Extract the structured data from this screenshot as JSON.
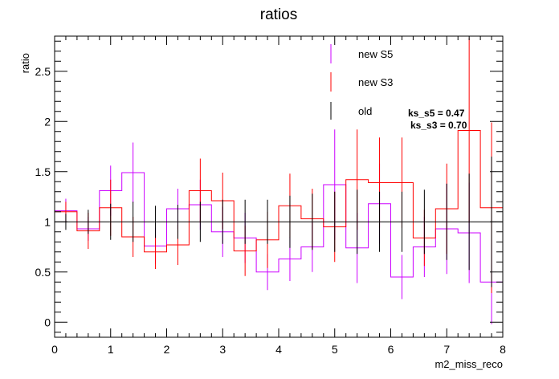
{
  "chart_data": {
    "type": "line",
    "title": "ratios",
    "xlabel": "m2_miss_reco",
    "ylabel": "ratio",
    "xlim": [
      0,
      8
    ],
    "ylim": [
      -0.15,
      2.85
    ],
    "x_ticks": [
      0,
      1,
      2,
      3,
      4,
      5,
      6,
      7,
      8
    ],
    "x_tick_labels": [
      "0",
      "1",
      "2",
      "3",
      "4",
      "5",
      "6",
      "7",
      "8"
    ],
    "y_ticks": [
      0,
      0.5,
      1,
      1.5,
      2,
      2.5
    ],
    "y_tick_labels": [
      "0",
      "0.5",
      "1",
      "1.5",
      "2",
      "2.5"
    ],
    "reference_line": 1,
    "bin_edges": [
      0,
      0.4,
      0.8,
      1.2,
      1.6,
      2.0,
      2.4,
      2.8,
      3.2,
      3.6,
      4.0,
      4.4,
      4.8,
      5.2,
      5.6,
      6.0,
      6.4,
      6.8,
      7.2,
      7.6,
      8.0
    ],
    "series": [
      {
        "name": "new S5",
        "color": "#cc00ff",
        "values": [
          1.11,
          0.93,
          1.31,
          1.49,
          0.76,
          1.13,
          1.17,
          0.9,
          0.84,
          0.5,
          0.63,
          0.75,
          1.37,
          0.74,
          1.18,
          0.45,
          0.75,
          0.93,
          0.89,
          0.4
        ],
        "errors": [
          0.12,
          0.12,
          0.25,
          0.3,
          0.18,
          0.2,
          0.25,
          0.25,
          0.25,
          0.18,
          0.22,
          0.25,
          0.55,
          0.35,
          0.4,
          0.22,
          0.3,
          0.45,
          0.5,
          0.42
        ]
      },
      {
        "name": "new S3",
        "color": "#ff0000",
        "values": [
          1.1,
          0.91,
          1.14,
          0.85,
          0.7,
          0.77,
          1.31,
          1.21,
          0.71,
          0.82,
          1.16,
          1.03,
          0.95,
          1.42,
          1.39,
          1.39,
          0.84,
          1.13,
          1.91,
          1.14
        ],
        "errors": [
          0.1,
          0.18,
          0.28,
          0.2,
          0.17,
          0.2,
          0.32,
          0.28,
          0.25,
          0.28,
          0.32,
          0.3,
          0.35,
          0.5,
          0.45,
          0.45,
          0.28,
          0.45,
          0.92,
          0.85
        ]
      },
      {
        "name": "old",
        "color": "#000000",
        "values": [
          1,
          1,
          1,
          1,
          1,
          1,
          1,
          1,
          1,
          1,
          1,
          1,
          1,
          1,
          1,
          1,
          1,
          1,
          1,
          1
        ],
        "errors": [
          0.08,
          0.12,
          0.18,
          0.2,
          0.16,
          0.17,
          0.2,
          0.22,
          0.22,
          0.22,
          0.26,
          0.28,
          0.3,
          0.32,
          0.3,
          0.3,
          0.32,
          0.38,
          0.48,
          0.65
        ]
      }
    ],
    "legend": {
      "position": "top-right",
      "entries": [
        "new S5",
        "new S3",
        "old"
      ]
    },
    "annotations": [
      "ks_s5 = 0.47",
      "ks_s3 = 0.70"
    ]
  }
}
